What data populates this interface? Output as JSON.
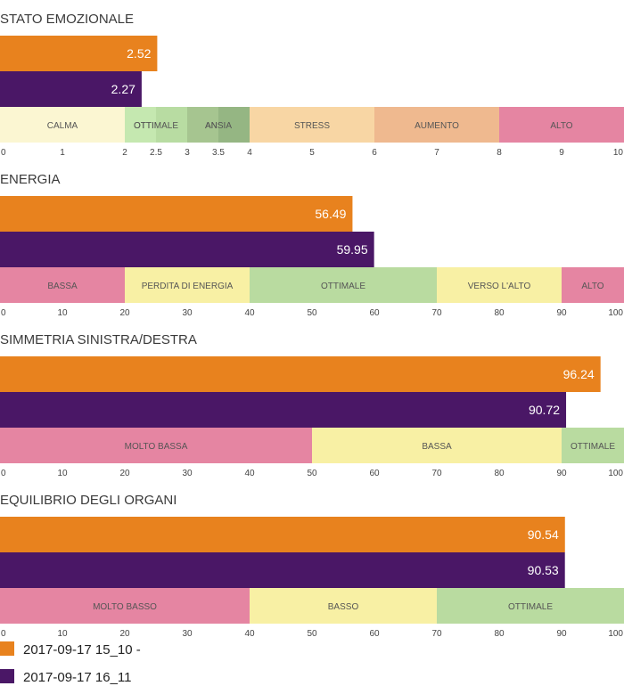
{
  "colors": {
    "series_a": "#e8821e",
    "series_b": "#4a1766"
  },
  "chart_data": [
    {
      "type": "bar",
      "title": "STATO EMOZIONALE",
      "xlim": [
        0,
        10
      ],
      "tick_values": [
        0,
        1,
        2,
        2.5,
        3,
        3.5,
        4,
        5,
        6,
        7,
        8,
        9,
        10
      ],
      "tick_labels": [
        "0",
        "1",
        "2",
        "2.5",
        "3",
        "3.5",
        "4",
        "5",
        "6",
        "7",
        "8",
        "9",
        "10"
      ],
      "series": [
        {
          "name": "2017-09-17 15_10 -",
          "values": [
            2.52
          ],
          "labels": [
            "2.52"
          ],
          "color": "#e8821e"
        },
        {
          "name": "2017-09-17 16_11",
          "values": [
            2.27
          ],
          "labels": [
            "2.27"
          ],
          "color": "#4a1766"
        }
      ],
      "zones": [
        {
          "label": "CALMA",
          "from": 0,
          "to": 2,
          "color": "#fbf6d2"
        },
        {
          "label": "OTTIMALE",
          "from": 2,
          "to": 3,
          "color": "#c5e8b0"
        },
        {
          "label": "ANSIA",
          "from": 3,
          "to": 4,
          "color": "#a6c590"
        },
        {
          "label": "STRESS",
          "from": 4,
          "to": 6,
          "color": "#f8d6a4"
        },
        {
          "label": "AUMENTO",
          "from": 6,
          "to": 8,
          "color": "#efb98f"
        },
        {
          "label": "ALTO",
          "from": 8,
          "to": 10,
          "color": "#e585a2"
        }
      ]
    },
    {
      "type": "bar",
      "title": "ENERGIA",
      "xlim": [
        0,
        100
      ],
      "tick_values": [
        0,
        10,
        20,
        30,
        40,
        50,
        60,
        70,
        80,
        90,
        100
      ],
      "tick_labels": [
        "0",
        "10",
        "20",
        "30",
        "40",
        "50",
        "60",
        "70",
        "80",
        "90",
        "100"
      ],
      "series": [
        {
          "name": "2017-09-17 15_10 -",
          "values": [
            56.49
          ],
          "labels": [
            "56.49"
          ],
          "color": "#e8821e"
        },
        {
          "name": "2017-09-17 16_11",
          "values": [
            59.95
          ],
          "labels": [
            "59.95"
          ],
          "color": "#4a1766"
        }
      ],
      "zones": [
        {
          "label": "BASSA",
          "from": 0,
          "to": 20,
          "color": "#e585a2"
        },
        {
          "label": "PERDITA DI ENERGIA",
          "from": 20,
          "to": 40,
          "color": "#f8f0a4"
        },
        {
          "label": "OTTIMALE",
          "from": 40,
          "to": 70,
          "color": "#b9dba0"
        },
        {
          "label": "VERSO L'ALTO",
          "from": 70,
          "to": 90,
          "color": "#f8f0a4"
        },
        {
          "label": "ALTO",
          "from": 90,
          "to": 100,
          "color": "#e585a2"
        }
      ]
    },
    {
      "type": "bar",
      "title": "SIMMETRIA SINISTRA/DESTRA",
      "xlim": [
        0,
        100
      ],
      "tick_values": [
        0,
        10,
        20,
        30,
        40,
        50,
        60,
        70,
        80,
        90,
        100
      ],
      "tick_labels": [
        "0",
        "10",
        "20",
        "30",
        "40",
        "50",
        "60",
        "70",
        "80",
        "90",
        "100"
      ],
      "series": [
        {
          "name": "2017-09-17 15_10 -",
          "values": [
            96.24
          ],
          "labels": [
            "96.24"
          ],
          "color": "#e8821e"
        },
        {
          "name": "2017-09-17 16_11",
          "values": [
            90.72
          ],
          "labels": [
            "90.72"
          ],
          "color": "#4a1766"
        }
      ],
      "zones": [
        {
          "label": "MOLTO BASSA",
          "from": 0,
          "to": 50,
          "color": "#e585a2"
        },
        {
          "label": "BASSA",
          "from": 50,
          "to": 90,
          "color": "#f8f0a4"
        },
        {
          "label": "OTTIMALE",
          "from": 90,
          "to": 100,
          "color": "#b9dba0"
        }
      ]
    },
    {
      "type": "bar",
      "title": "EQUILIBRIO DEGLI ORGANI",
      "xlim": [
        0,
        100
      ],
      "tick_values": [
        0,
        10,
        20,
        30,
        40,
        50,
        60,
        70,
        80,
        90,
        100
      ],
      "tick_labels": [
        "0",
        "10",
        "20",
        "30",
        "40",
        "50",
        "60",
        "70",
        "80",
        "90",
        "100"
      ],
      "series": [
        {
          "name": "2017-09-17 15_10 -",
          "values": [
            90.54
          ],
          "labels": [
            "90.54"
          ],
          "color": "#e8821e"
        },
        {
          "name": "2017-09-17 16_11",
          "values": [
            90.53
          ],
          "labels": [
            "90.53"
          ],
          "color": "#4a1766"
        }
      ],
      "zones": [
        {
          "label": "MOLTO BASSO",
          "from": 0,
          "to": 40,
          "color": "#e585a2"
        },
        {
          "label": "BASSO",
          "from": 40,
          "to": 70,
          "color": "#f8f0a4"
        },
        {
          "label": "OTTIMALE",
          "from": 70,
          "to": 100,
          "color": "#b9dba0"
        }
      ]
    }
  ],
  "legend": [
    {
      "label": "2017-09-17 15_10 -",
      "color": "#e8821e"
    },
    {
      "label": "2017-09-17 16_11",
      "color": "#4a1766"
    }
  ]
}
